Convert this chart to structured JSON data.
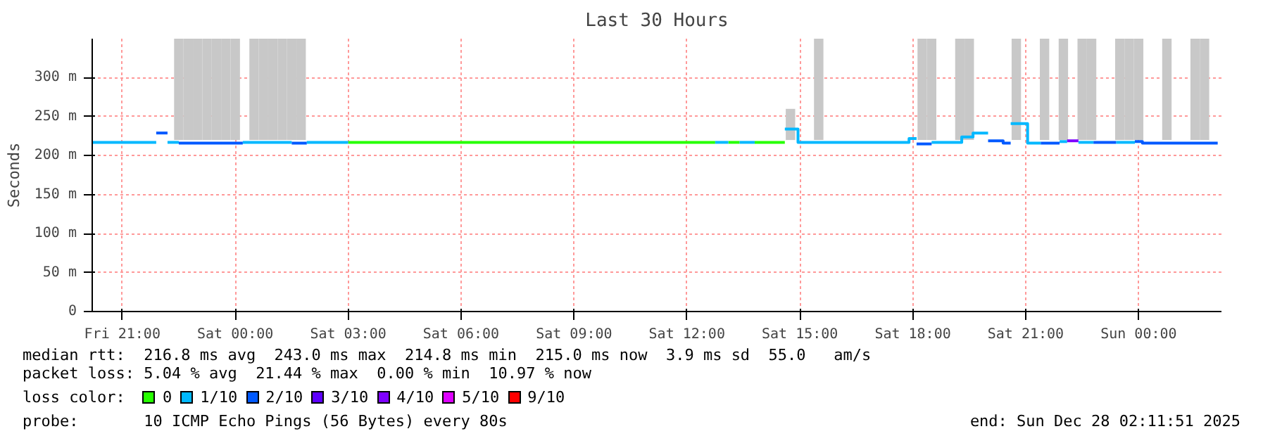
{
  "chart_data": {
    "type": "line",
    "title": "Last 30 Hours",
    "ylabel": "Seconds",
    "legend_title": "loss color:",
    "legend": "bottom",
    "grid": true,
    "xlim": [
      "2025-12-26T20:12",
      "2025-12-28T02:12"
    ],
    "xticks": [
      {
        "value": "2025-12-26T21:00",
        "label": "Fri 21:00"
      },
      {
        "value": "2025-12-27T00:00",
        "label": "Sat 00:00"
      },
      {
        "value": "2025-12-27T03:00",
        "label": "Sat 03:00"
      },
      {
        "value": "2025-12-27T06:00",
        "label": "Sat 06:00"
      },
      {
        "value": "2025-12-27T09:00",
        "label": "Sat 09:00"
      },
      {
        "value": "2025-12-27T12:00",
        "label": "Sat 12:00"
      },
      {
        "value": "2025-12-27T15:00",
        "label": "Sat 15:00"
      },
      {
        "value": "2025-12-27T18:00",
        "label": "Sat 18:00"
      },
      {
        "value": "2025-12-27T21:00",
        "label": "Sat 21:00"
      },
      {
        "value": "2025-12-28T00:00",
        "label": "Sun 00:00"
      }
    ],
    "ylim": [
      0,
      350
    ],
    "yticks": [
      0,
      {
        "value": 50,
        "label": "50 m"
      },
      {
        "value": 100,
        "label": "100 m"
      },
      {
        "value": 150,
        "label": "150 m"
      },
      {
        "value": 200,
        "label": "200 m"
      },
      {
        "value": 250,
        "label": "250 m"
      },
      {
        "value": 300,
        "label": "300 m"
      }
    ],
    "series": [
      {
        "type": "bar",
        "color": "#c8c8c8",
        "x": [
          "2025-12-26T22:30",
          "2025-12-26T22:45",
          "2025-12-26T23:00",
          "2025-12-26T23:15",
          "2025-12-26T23:30",
          "2025-12-26T23:45",
          "2025-12-27T00:00",
          "2025-12-27T00:30",
          "2025-12-27T00:45",
          "2025-12-27T01:00",
          "2025-12-27T01:15",
          "2025-12-27T01:30",
          "2025-12-27T01:45",
          "2025-12-27T14:45",
          "2025-12-27T15:30",
          "2025-12-27T18:15",
          "2025-12-27T18:30",
          "2025-12-27T19:15",
          "2025-12-27T19:30",
          "2025-12-27T20:45",
          "2025-12-27T21:30",
          "2025-12-27T22:00",
          "2025-12-27T22:30",
          "2025-12-27T22:45",
          "2025-12-27T23:30",
          "2025-12-27T23:45",
          "2025-12-28T00:00",
          "2025-12-28T00:45",
          "2025-12-28T01:30",
          "2025-12-28T01:45"
        ],
        "base": [
          220,
          220,
          220,
          220,
          220,
          220,
          220,
          220,
          220,
          220,
          220,
          220,
          220,
          220,
          220,
          220,
          220,
          220,
          220,
          220,
          220,
          220,
          220,
          220,
          220,
          220,
          220,
          220,
          220,
          220
        ],
        "values": [
          130,
          130,
          130,
          130,
          130,
          130,
          130,
          130,
          130,
          130,
          130,
          130,
          130,
          40,
          130,
          130,
          130,
          130,
          130,
          130,
          130,
          130,
          130,
          130,
          130,
          130,
          130,
          130,
          130,
          130
        ]
      },
      {
        "name": "0",
        "color": "#26ff00",
        "x": [
          "2025-12-27T03:00",
          "2025-12-27T12:45"
        ],
        "values": [
          217,
          217
        ]
      },
      {
        "color": "#26ff00",
        "x": [
          "2025-12-27T13:06",
          "2025-12-27T13:24"
        ],
        "values": [
          217,
          217
        ]
      },
      {
        "color": "#26ff00",
        "x": [
          "2025-12-27T13:48",
          "2025-12-27T14:36"
        ],
        "values": [
          217,
          217
        ]
      },
      {
        "name": "1/10",
        "color": "#00b8ff",
        "x": [
          "2025-12-26T20:12",
          "2025-12-26T21:54"
        ],
        "values": [
          217,
          217
        ]
      },
      {
        "color": "#00b8ff",
        "x": [
          "2025-12-26T22:12",
          "2025-12-26T22:30"
        ],
        "values": [
          217,
          217
        ]
      },
      {
        "color": "#00b8ff",
        "x": [
          "2025-12-27T00:12",
          "2025-12-27T01:30"
        ],
        "values": [
          217,
          217
        ]
      },
      {
        "color": "#00b8ff",
        "x": [
          "2025-12-27T01:54",
          "2025-12-27T03:00"
        ],
        "values": [
          217,
          217
        ]
      },
      {
        "color": "#00b8ff",
        "x": [
          "2025-12-27T12:45",
          "2025-12-27T13:06"
        ],
        "values": [
          217,
          217
        ]
      },
      {
        "color": "#00b8ff",
        "x": [
          "2025-12-27T13:24",
          "2025-12-27T13:48"
        ],
        "values": [
          217,
          217
        ]
      },
      {
        "color": "#00b8ff",
        "x": [
          "2025-12-27T14:36",
          "2025-12-27T14:57",
          "2025-12-27T14:57",
          "2025-12-27T17:54",
          "2025-12-27T17:54",
          "2025-12-27T18:06"
        ],
        "values": [
          234,
          234,
          217,
          217,
          222,
          222
        ]
      },
      {
        "color": "#00b8ff",
        "x": [
          "2025-12-27T18:30",
          "2025-12-27T19:18",
          "2025-12-27T19:18",
          "2025-12-27T19:36",
          "2025-12-27T19:36",
          "2025-12-27T20:00"
        ],
        "values": [
          217,
          217,
          224,
          224,
          229,
          229
        ]
      },
      {
        "color": "#00b8ff",
        "x": [
          "2025-12-27T20:36",
          "2025-12-27T21:03",
          "2025-12-27T21:03",
          "2025-12-27T21:24"
        ],
        "values": [
          241,
          241,
          216,
          216
        ]
      },
      {
        "color": "#00b8ff",
        "x": [
          "2025-12-27T21:54",
          "2025-12-27T22:06"
        ],
        "values": [
          218,
          218
        ]
      },
      {
        "color": "#00b8ff",
        "x": [
          "2025-12-27T22:24",
          "2025-12-27T22:48"
        ],
        "values": [
          217,
          217
        ]
      },
      {
        "color": "#00b8ff",
        "x": [
          "2025-12-27T23:24",
          "2025-12-27T23:54"
        ],
        "values": [
          217,
          217
        ]
      },
      {
        "name": "2/10",
        "color": "#0059ff",
        "x": [
          "2025-12-26T21:54",
          "2025-12-26T22:12"
        ],
        "values": [
          229,
          229
        ]
      },
      {
        "color": "#0059ff",
        "x": [
          "2025-12-26T22:30",
          "2025-12-27T00:12"
        ],
        "values": [
          216,
          216
        ]
      },
      {
        "color": "#0059ff",
        "x": [
          "2025-12-27T01:30",
          "2025-12-27T01:54"
        ],
        "values": [
          216,
          216
        ]
      },
      {
        "color": "#0059ff",
        "x": [
          "2025-12-27T18:06",
          "2025-12-27T18:30"
        ],
        "values": [
          215,
          215
        ]
      },
      {
        "color": "#0059ff",
        "x": [
          "2025-12-27T20:00",
          "2025-12-27T20:24",
          "2025-12-27T20:24",
          "2025-12-27T20:36"
        ],
        "values": [
          219,
          219,
          216,
          216
        ]
      },
      {
        "color": "#0059ff",
        "x": [
          "2025-12-27T21:24",
          "2025-12-27T21:54"
        ],
        "values": [
          216,
          216
        ]
      },
      {
        "color": "#0059ff",
        "x": [
          "2025-12-27T22:48",
          "2025-12-27T23:24"
        ],
        "values": [
          217,
          217
        ]
      },
      {
        "color": "#0059ff",
        "x": [
          "2025-12-27T23:54",
          "2025-12-28T00:06",
          "2025-12-28T00:06",
          "2025-12-28T02:06"
        ],
        "values": [
          218,
          218,
          216,
          216
        ]
      },
      {
        "name": "3/10",
        "color": "#5e00ff"
      },
      {
        "name": "4/10",
        "color": "#7e00ff",
        "x": [
          "2025-12-27T22:06",
          "2025-12-27T22:24"
        ],
        "values": [
          219,
          219
        ]
      },
      {
        "name": "5/10",
        "color": "#dd00ff"
      },
      {
        "name": "9/10",
        "color": "#ff0000"
      }
    ],
    "annotations": [
      "median rtt:  216.8 ms avg  243.0 ms max  214.8 ms min  215.0 ms now  3.9 ms sd  55.0   am/s",
      "packet loss: 5.04 % avg  21.44 % max  0.00 % min  10.97 % now",
      "probe:       10 ICMP Echo Pings (56 Bytes) every 80s",
      "end: Sun Dec 28 02:11:51 2025"
    ]
  }
}
